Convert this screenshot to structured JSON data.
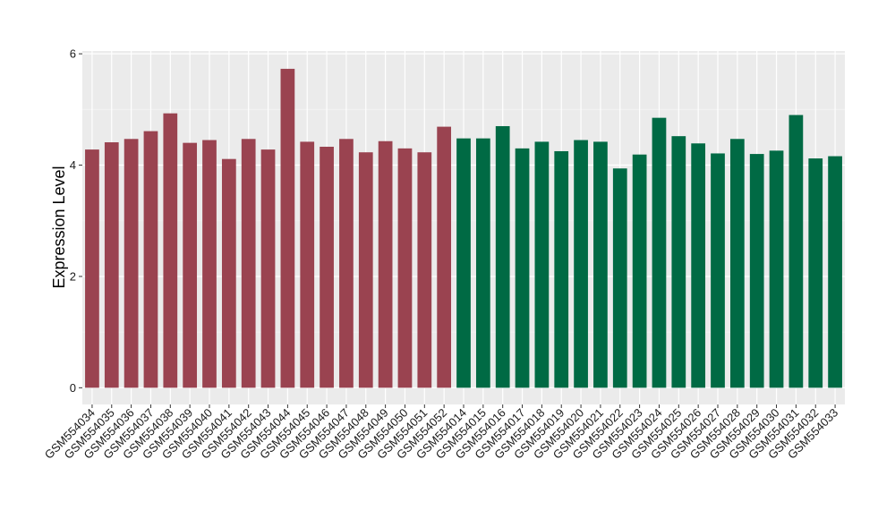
{
  "chart_data": {
    "type": "bar",
    "title": "",
    "xlabel": "",
    "ylabel": "Expression Level",
    "ylim": [
      -0.3,
      6.05
    ],
    "yticks": [
      0,
      2,
      4,
      6
    ],
    "grid": true,
    "legend": "none",
    "categories": [
      "GSM554034",
      "GSM554035",
      "GSM554036",
      "GSM554037",
      "GSM554038",
      "GSM554039",
      "GSM554040",
      "GSM554041",
      "GSM554042",
      "GSM554043",
      "GSM554044",
      "GSM554045",
      "GSM554046",
      "GSM554047",
      "GSM554048",
      "GSM554049",
      "GSM554050",
      "GSM554051",
      "GSM554052",
      "GSM554014",
      "GSM554015",
      "GSM554016",
      "GSM554017",
      "GSM554018",
      "GSM554019",
      "GSM554020",
      "GSM554021",
      "GSM554022",
      "GSM554023",
      "GSM554024",
      "GSM554025",
      "GSM554026",
      "GSM554027",
      "GSM554028",
      "GSM554029",
      "GSM554030",
      "GSM554031",
      "GSM554032",
      "GSM554033"
    ],
    "values": [
      4.28,
      4.41,
      4.47,
      4.61,
      4.93,
      4.4,
      4.45,
      4.11,
      4.47,
      4.28,
      5.73,
      4.42,
      4.33,
      4.47,
      4.23,
      4.43,
      4.3,
      4.23,
      4.69,
      4.48,
      4.48,
      4.7,
      4.3,
      4.42,
      4.25,
      4.45,
      4.42,
      3.94,
      4.19,
      4.85,
      4.52,
      4.39,
      4.21,
      4.47,
      4.2,
      4.26,
      4.9,
      4.12,
      4.16
    ],
    "groups": [
      {
        "count": 19,
        "color": "#9a4350"
      },
      {
        "count": 20,
        "color": "#006a44"
      }
    ]
  },
  "colors": {
    "panel_background": "#ebebeb",
    "grid_major": "#ffffff",
    "grid_minor": "#f4f4f4",
    "group_1_bar": "#9a4350",
    "group_2_bar": "#006a44"
  }
}
